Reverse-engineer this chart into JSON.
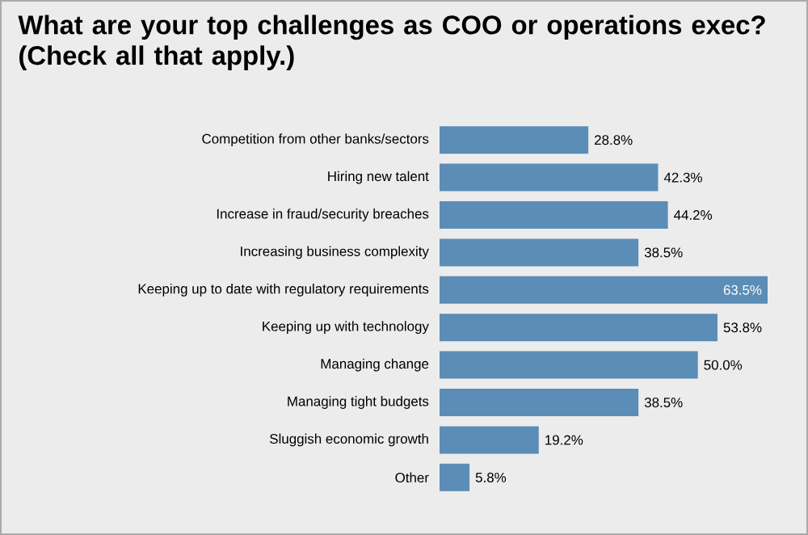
{
  "chart_data": {
    "type": "bar",
    "orientation": "horizontal",
    "title": "What are your top challenges as COO or operations exec? (Check all that apply.)",
    "categories": [
      "Competition from other banks/sectors",
      "Hiring new talent",
      "Increase in fraud/security breaches",
      "Increasing business complexity",
      "Keeping up to date with regulatory requirements",
      "Keeping up with technology",
      "Managing change",
      "Managing tight budgets",
      "Sluggish economic growth",
      "Other"
    ],
    "values": [
      28.8,
      42.3,
      44.2,
      38.5,
      63.5,
      53.8,
      50.0,
      38.5,
      19.2,
      5.8
    ],
    "value_labels": [
      "28.8%",
      "42.3%",
      "44.2%",
      "38.5%",
      "63.5%",
      "53.8%",
      "50.0%",
      "38.5%",
      "19.2%",
      "5.8%"
    ],
    "color": "#5b8db6"
  }
}
